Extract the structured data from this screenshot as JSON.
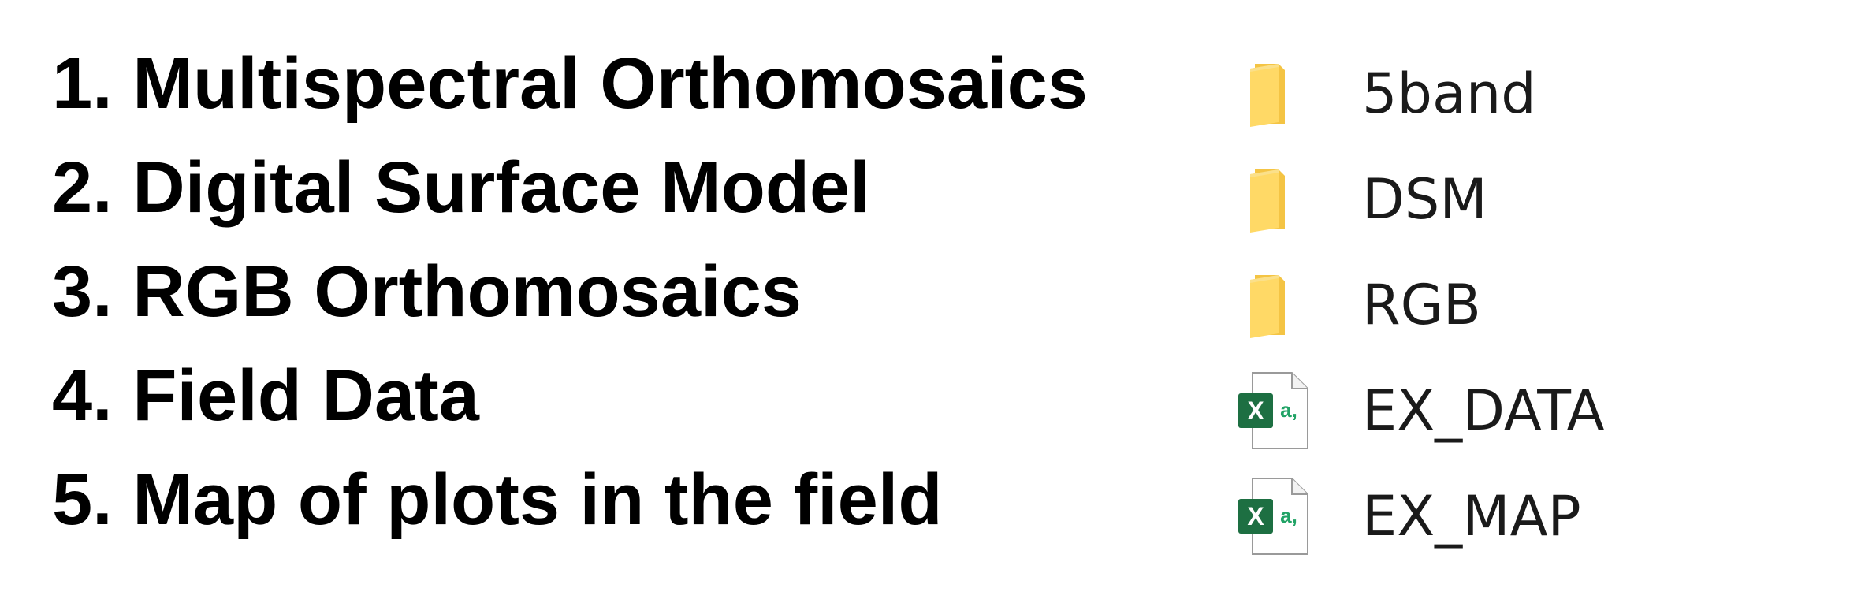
{
  "list": {
    "items": [
      "1. Multispectral Orthomosaics",
      "2. Digital Surface Model",
      "3. RGB Orthomosaics",
      "4. Field Data",
      "5. Map of plots in the field"
    ]
  },
  "files": [
    {
      "name": "5band",
      "icon": "folder-icon"
    },
    {
      "name": "DSM",
      "icon": "folder-icon"
    },
    {
      "name": "RGB",
      "icon": "folder-icon"
    },
    {
      "name": "EX_DATA",
      "icon": "excel-csv-icon"
    },
    {
      "name": "EX_MAP",
      "icon": "excel-csv-icon"
    }
  ],
  "colors": {
    "folder_front": "#FFD966",
    "folder_back": "#F4C444",
    "excel_green": "#1D6F42",
    "excel_accent": "#21A366"
  },
  "icon_text": {
    "excel_letter": "X",
    "excel_sub": "a,"
  }
}
